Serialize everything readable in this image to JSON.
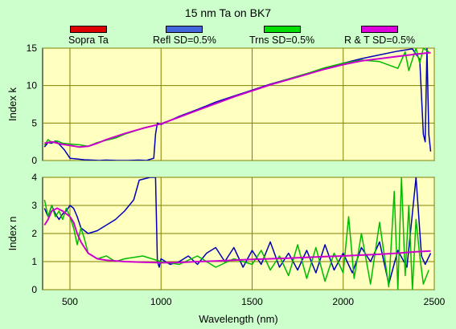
{
  "chart_data": {
    "type": "line",
    "title": "15 nm Ta on BK7",
    "xlabel": "Wavelength (nm)",
    "xlim": [
      350,
      2500
    ],
    "x_ticks": [
      "500",
      "1000",
      "1500",
      "2000",
      "2500"
    ],
    "legend_position": "top",
    "grid": true,
    "series_colors": {
      "Sopra Ta": "#dd0000",
      "Refl SD=0.5%": "#0000bb",
      "Trns SD=0.5%": "#00bb00",
      "R & T SD=0.5%": "#cc00cc"
    },
    "legend": [
      "Sopra Ta",
      "Refl SD=0.5%",
      "Trns SD=0.5%",
      "R & T SD=0.5%"
    ],
    "panels": [
      {
        "name": "top",
        "ylabel": "Index k",
        "ylim": [
          0,
          15
        ],
        "y_ticks": [
          "0",
          "5",
          "10",
          "15"
        ],
        "series": [
          {
            "name": "Refl SD=0.5%",
            "x": [
              360,
              380,
              400,
              420,
              440,
              470,
              500,
              540,
              580,
              620,
              660,
              700,
              760,
              820,
              880,
              920,
              960,
              970,
              980,
              1000,
              1100,
              1200,
              1300,
              1400,
              1500,
              1600,
              1700,
              1800,
              1900,
              2000,
              2100,
              2200,
              2300,
              2380,
              2420,
              2440,
              2450,
              2460,
              2470,
              2480
            ],
            "values": [
              1.8,
              2.4,
              2.3,
              2.6,
              2.2,
              1.4,
              0.3,
              0.2,
              0.1,
              0.05,
              0.0,
              0.05,
              0.0,
              0.0,
              0.05,
              0.0,
              0.3,
              3.5,
              5.0,
              4.8,
              5.9,
              6.8,
              7.8,
              8.6,
              9.4,
              10.2,
              10.9,
              11.6,
              12.3,
              13.0,
              13.6,
              14.1,
              14.6,
              14.9,
              13.5,
              3.5,
              2.5,
              15.0,
              3.5,
              1.2
            ]
          },
          {
            "name": "Trns SD=0.5%",
            "x": [
              360,
              380,
              400,
              430,
              460,
              500,
              550,
              600,
              650,
              700,
              750,
              800,
              900,
              1000,
              1100,
              1200,
              1300,
              1400,
              1500,
              1600,
              1700,
              1800,
              1900,
              2000,
              2100,
              2200,
              2300,
              2340,
              2360,
              2380,
              2400,
              2420,
              2440,
              2470
            ],
            "values": [
              2.0,
              2.8,
              2.4,
              2.6,
              2.3,
              2.2,
              2.1,
              1.9,
              2.4,
              2.7,
              3.0,
              3.5,
              4.3,
              4.9,
              5.8,
              6.7,
              7.6,
              8.5,
              9.3,
              10.1,
              10.9,
              11.6,
              12.4,
              13.0,
              13.4,
              13.2,
              12.3,
              14.5,
              12.0,
              13.5,
              15.0,
              13.0,
              15.0,
              14.5
            ]
          },
          {
            "name": "R & T SD=0.5%",
            "x": [
              360,
              400,
              450,
              500,
              550,
              600,
              650,
              700,
              800,
              900,
              1000,
              1100,
              1200,
              1300,
              1400,
              1500,
              1600,
              1700,
              1800,
              1900,
              2000,
              2100,
              2200,
              2300,
              2400,
              2480
            ],
            "values": [
              2.3,
              2.5,
              2.2,
              2.0,
              1.8,
              1.9,
              2.3,
              2.8,
              3.6,
              4.3,
              4.9,
              5.8,
              6.7,
              7.6,
              8.5,
              9.3,
              10.1,
              10.8,
              11.5,
              12.2,
              12.8,
              13.3,
              13.6,
              13.9,
              14.2,
              14.4
            ]
          }
        ]
      },
      {
        "name": "bottom",
        "ylabel": "Index n",
        "ylim": [
          0,
          4
        ],
        "y_ticks": [
          "0",
          "1",
          "2",
          "3",
          "4"
        ],
        "series": [
          {
            "name": "Refl SD=0.5%",
            "x": [
              360,
              380,
              400,
              420,
              440,
              460,
              480,
              500,
              520,
              540,
              560,
              600,
              650,
              700,
              750,
              800,
              850,
              880,
              940,
              960,
              970,
              980,
              990,
              1000,
              1050,
              1100,
              1150,
              1200,
              1250,
              1300,
              1350,
              1400,
              1450,
              1500,
              1550,
              1600,
              1650,
              1700,
              1750,
              1800,
              1850,
              1900,
              1950,
              2000,
              2050,
              2100,
              2150,
              2200,
              2250,
              2300,
              2350,
              2400,
              2430,
              2450,
              2480
            ],
            "values": [
              2.9,
              2.6,
              3.0,
              2.7,
              2.5,
              2.7,
              2.8,
              3.0,
              2.9,
              2.6,
              2.2,
              2.0,
              2.1,
              2.3,
              2.5,
              2.8,
              3.2,
              3.9,
              4.0,
              4.0,
              4.0,
              1.0,
              0.8,
              1.1,
              0.9,
              1.0,
              1.2,
              0.9,
              1.3,
              1.5,
              1.0,
              1.5,
              0.8,
              1.4,
              0.9,
              1.7,
              0.8,
              1.3,
              0.7,
              1.4,
              0.6,
              1.6,
              0.7,
              1.3,
              0.6,
              1.5,
              1.0,
              1.7,
              0.2,
              1.4,
              0.8,
              4.0,
              1.2,
              0.9,
              1.3
            ]
          },
          {
            "name": "Trns SD=0.5%",
            "x": [
              360,
              380,
              400,
              420,
              440,
              460,
              480,
              500,
              520,
              540,
              560,
              580,
              600,
              650,
              700,
              750,
              800,
              900,
              1000,
              1100,
              1200,
              1300,
              1400,
              1500,
              1550,
              1600,
              1650,
              1700,
              1750,
              1800,
              1850,
              1900,
              1950,
              2000,
              2030,
              2060,
              2100,
              2150,
              2200,
              2250,
              2280,
              2300,
              2320,
              2340,
              2360,
              2380,
              2400,
              2420,
              2440,
              2470
            ],
            "values": [
              3.2,
              2.6,
              3.0,
              2.6,
              2.8,
              2.5,
              2.9,
              2.6,
              2.2,
              1.6,
              2.2,
              1.8,
              1.3,
              1.1,
              1.2,
              1.0,
              1.1,
              1.2,
              1.0,
              0.9,
              1.2,
              0.8,
              1.1,
              0.9,
              1.4,
              0.7,
              1.2,
              0.5,
              1.6,
              0.4,
              1.5,
              0.3,
              1.3,
              0.6,
              2.6,
              0.4,
              2.0,
              0.2,
              2.4,
              0.1,
              3.5,
              0.0,
              4.0,
              0.5,
              3.0,
              0.0,
              2.5,
              1.2,
              0.2,
              0.7
            ]
          },
          {
            "name": "R & T SD=0.5%",
            "x": [
              360,
              380,
              400,
              430,
              460,
              500,
              520,
              540,
              560,
              600,
              650,
              700,
              800,
              900,
              1000,
              1100,
              1200,
              1300,
              1400,
              1500,
              1600,
              1700,
              1800,
              1900,
              2000,
              2100,
              2200,
              2300,
              2400,
              2480
            ],
            "values": [
              2.3,
              2.5,
              2.8,
              2.9,
              2.8,
              2.6,
              2.4,
              2.0,
              1.7,
              1.3,
              1.1,
              1.05,
              1.0,
              0.98,
              0.96,
              0.97,
              1.0,
              1.02,
              1.05,
              1.08,
              1.1,
              1.12,
              1.15,
              1.18,
              1.2,
              1.23,
              1.26,
              1.3,
              1.35,
              1.38
            ]
          }
        ]
      }
    ]
  }
}
